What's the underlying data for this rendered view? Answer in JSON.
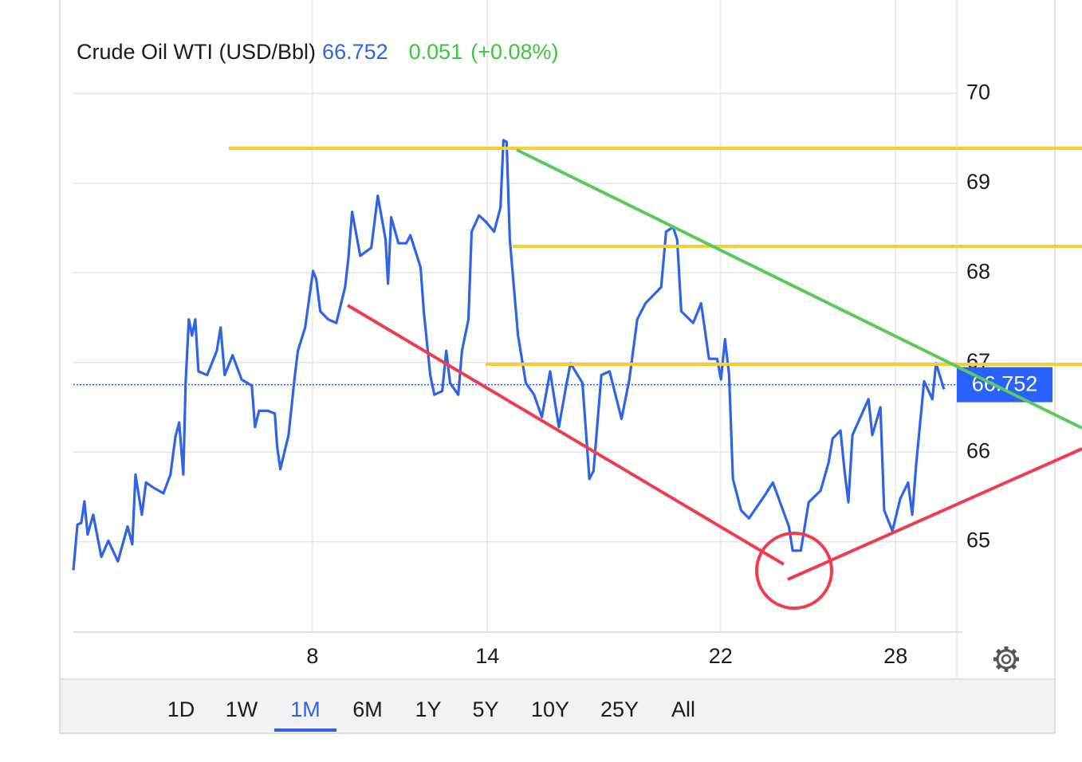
{
  "chart_data": {
    "type": "line",
    "title": "Crude Oil WTI (USD/Bbl)",
    "price": 66.752,
    "change": 0.051,
    "change_label": "(+0.08%)",
    "x": [
      -0.2,
      -0.06,
      0.07,
      0.18,
      0.29,
      0.48,
      0.76,
      1.0,
      1.33,
      1.66,
      1.82,
      1.93,
      2.15,
      2.29,
      2.56,
      2.89,
      3.13,
      3.3,
      3.43,
      3.57,
      3.65,
      3.76,
      3.87,
      3.98,
      4.09,
      4.39,
      4.72,
      4.85,
      4.99,
      5.26,
      5.57,
      5.92,
      6.03,
      6.17,
      6.47,
      6.71,
      6.79,
      6.9,
      7.18,
      7.4,
      7.5,
      7.75,
      8.02,
      8.13,
      8.27,
      8.54,
      8.82,
      9.12,
      9.23,
      9.36,
      9.64,
      10.02,
      10.24,
      10.51,
      10.59,
      10.7,
      10.95,
      11.22,
      11.36,
      11.71,
      11.82,
      12.04,
      12.18,
      12.45,
      12.59,
      12.72,
      13.0,
      13.13,
      13.35,
      13.46,
      13.71,
      13.95,
      14.23,
      14.45,
      14.55,
      14.66,
      14.77,
      15.05,
      15.32,
      15.6,
      15.87,
      16.15,
      16.45,
      16.72,
      16.85,
      17.26,
      17.5,
      17.64,
      17.91,
      18.19,
      18.6,
      18.87,
      19.14,
      19.42,
      19.96,
      20.13,
      20.37,
      20.51,
      20.65,
      21.06,
      21.33,
      21.6,
      21.88,
      22.01,
      22.15,
      22.29,
      22.42,
      22.7,
      22.97,
      23.52,
      23.79,
      24.34,
      24.47,
      24.75,
      25.02,
      25.43,
      25.7,
      25.84,
      26.11,
      26.25,
      26.38,
      26.52,
      27.07,
      27.2,
      27.48,
      27.61,
      27.89,
      28.16,
      28.43,
      28.57,
      28.71,
      28.98,
      29.26,
      29.39,
      29.66
    ],
    "series": [
      {
        "name": "Crude Oil WTI",
        "color": "#2f63e8",
        "values": [
          64.68,
          65.19,
          65.21,
          65.45,
          65.08,
          65.3,
          64.83,
          65.01,
          64.78,
          65.17,
          64.97,
          65.75,
          65.3,
          65.66,
          65.6,
          65.54,
          65.75,
          66.17,
          66.33,
          65.75,
          66.77,
          67.48,
          67.3,
          67.48,
          66.9,
          66.86,
          67.13,
          67.39,
          66.86,
          67.08,
          66.81,
          66.74,
          66.28,
          66.46,
          66.46,
          66.43,
          66.06,
          65.81,
          66.19,
          66.86,
          67.13,
          67.39,
          68.02,
          67.93,
          67.57,
          67.48,
          67.44,
          67.84,
          68.15,
          68.68,
          68.19,
          68.28,
          68.86,
          68.37,
          67.88,
          68.62,
          68.33,
          68.33,
          68.42,
          68.06,
          67.57,
          66.86,
          66.64,
          66.68,
          67.13,
          66.77,
          66.64,
          67.13,
          67.48,
          68.46,
          68.64,
          68.57,
          68.46,
          68.73,
          69.48,
          69.46,
          68.37,
          67.3,
          66.77,
          66.64,
          66.39,
          66.9,
          66.28,
          66.77,
          66.99,
          66.77,
          65.7,
          65.79,
          66.86,
          66.9,
          66.37,
          66.81,
          67.48,
          67.66,
          67.84,
          68.46,
          68.51,
          68.37,
          67.57,
          67.44,
          67.66,
          67.04,
          67.04,
          66.81,
          67.26,
          66.86,
          65.7,
          65.35,
          65.26,
          65.52,
          65.66,
          65.17,
          64.9,
          64.9,
          65.44,
          65.57,
          65.88,
          66.15,
          66.24,
          65.79,
          65.44,
          66.19,
          66.59,
          66.19,
          66.5,
          65.35,
          65.12,
          65.48,
          65.66,
          65.3,
          65.88,
          66.79,
          66.59,
          66.99,
          66.7
        ]
      }
    ],
    "xlim": [
      -0.2,
      30.1
    ],
    "xticks": [
      8,
      14,
      22,
      28
    ],
    "ylim": [
      64,
      71
    ],
    "yticks": [
      65,
      66,
      67,
      68,
      69,
      70
    ],
    "grid": true,
    "ranges": [
      "1D",
      "1W",
      "1M",
      "6M",
      "1Y",
      "5Y",
      "10Y",
      "25Y",
      "All"
    ],
    "selected_range": 2
  }
}
